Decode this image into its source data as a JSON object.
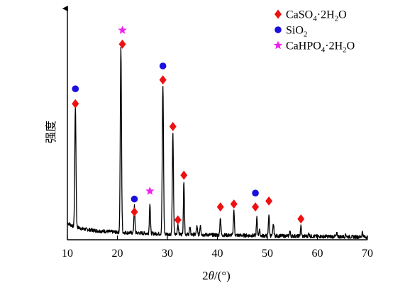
{
  "chart_data": {
    "type": "line",
    "xlabel_parts": [
      "2",
      "θ",
      "/(°)"
    ],
    "ylabel": "强度",
    "xlim": [
      10,
      70
    ],
    "ylim": [
      0,
      100
    ],
    "x_ticks": [
      10,
      20,
      30,
      40,
      50,
      60,
      70
    ],
    "y_ticks": [],
    "grid": false,
    "legend_position": "top-right",
    "legend": [
      {
        "key": "gypsum",
        "marker": "diamond",
        "color": "#ee1111",
        "parts": [
          [
            "CaSO",
            ""
          ],
          [
            "4",
            "sub"
          ],
          [
            "·2H",
            ""
          ],
          [
            "2",
            "sub"
          ],
          [
            "O",
            ""
          ]
        ]
      },
      {
        "key": "silica",
        "marker": "circle",
        "color": "#1a10dd",
        "parts": [
          [
            "SiO",
            ""
          ],
          [
            "2",
            "sub"
          ]
        ]
      },
      {
        "key": "brushite",
        "marker": "star",
        "color": "#ee22ee",
        "parts": [
          [
            "CaHPO",
            ""
          ],
          [
            "4",
            "sub"
          ],
          [
            "·2H",
            ""
          ],
          [
            "2",
            "sub"
          ],
          [
            "O",
            ""
          ]
        ]
      }
    ],
    "series": [
      {
        "baseline": [
          [
            10,
            8.5
          ],
          [
            11,
            7
          ],
          [
            13,
            5.5
          ],
          [
            16,
            4.5
          ],
          [
            20,
            3.8
          ],
          [
            25,
            3.3
          ],
          [
            30,
            2.9
          ],
          [
            40,
            2.4
          ],
          [
            50,
            2.0
          ],
          [
            60,
            1.7
          ],
          [
            70,
            1.4
          ]
        ],
        "peaks": [
          {
            "x": 11.6,
            "height": 60.5,
            "width": 0.12
          },
          {
            "x": 20.7,
            "height": 93.0,
            "width": 0.12
          },
          {
            "x": 23.4,
            "height": 13.5,
            "width": 0.1
          },
          {
            "x": 26.5,
            "height": 15.5,
            "width": 0.1
          },
          {
            "x": 29.1,
            "height": 74.5,
            "width": 0.12
          },
          {
            "x": 31.1,
            "height": 50.0,
            "width": 0.11
          },
          {
            "x": 32.1,
            "height": 5.0,
            "width": 0.1
          },
          {
            "x": 33.3,
            "height": 27.0,
            "width": 0.1
          },
          {
            "x": 34.5,
            "height": 3.5,
            "width": 0.1
          },
          {
            "x": 35.9,
            "height": 4.0,
            "width": 0.1
          },
          {
            "x": 36.6,
            "height": 5.0,
            "width": 0.1
          },
          {
            "x": 40.6,
            "height": 9.0,
            "width": 0.1
          },
          {
            "x": 43.3,
            "height": 12.5,
            "width": 0.1
          },
          {
            "x": 47.9,
            "height": 9.0,
            "width": 0.1
          },
          {
            "x": 48.4,
            "height": 3.0,
            "width": 0.1
          },
          {
            "x": 50.3,
            "height": 11.0,
            "width": 0.1
          },
          {
            "x": 51.2,
            "height": 6.0,
            "width": 0.1
          },
          {
            "x": 54.5,
            "height": 2.5,
            "width": 0.1
          },
          {
            "x": 56.7,
            "height": 5.0,
            "width": 0.1
          },
          {
            "x": 58.3,
            "height": 1.5,
            "width": 0.1
          },
          {
            "x": 63.9,
            "height": 1.5,
            "width": 0.1
          },
          {
            "x": 65.7,
            "height": 1.2,
            "width": 0.1
          },
          {
            "x": 69.0,
            "height": 2.5,
            "width": 0.1
          }
        ],
        "noise": 0.9
      }
    ],
    "phase_markers": [
      {
        "phase": "gypsum",
        "x": 11.6,
        "y": 68.5
      },
      {
        "phase": "silica",
        "x": 11.6,
        "y": 76.0
      },
      {
        "phase": "brushite",
        "x": 21.0,
        "y": 105.5
      },
      {
        "phase": "gypsum",
        "x": 21.0,
        "y": 98.5
      },
      {
        "phase": "silica",
        "x": 23.4,
        "y": 20.5
      },
      {
        "phase": "gypsum",
        "x": 23.4,
        "y": 14.0
      },
      {
        "phase": "brushite",
        "x": 26.5,
        "y": 24.5
      },
      {
        "phase": "gypsum",
        "x": 32.1,
        "y": 10.0
      },
      {
        "phase": "silica",
        "x": 29.1,
        "y": 87.5
      },
      {
        "phase": "gypsum",
        "x": 29.1,
        "y": 80.5
      },
      {
        "phase": "gypsum",
        "x": 31.1,
        "y": 57.0
      },
      {
        "phase": "gypsum",
        "x": 33.3,
        "y": 32.5
      },
      {
        "phase": "gypsum",
        "x": 40.6,
        "y": 16.5
      },
      {
        "phase": "gypsum",
        "x": 43.3,
        "y": 18.0
      },
      {
        "phase": "silica",
        "x": 47.6,
        "y": 23.5
      },
      {
        "phase": "gypsum",
        "x": 47.6,
        "y": 16.5
      },
      {
        "phase": "gypsum",
        "x": 50.3,
        "y": 19.5
      },
      {
        "phase": "gypsum",
        "x": 56.7,
        "y": 10.5
      }
    ]
  }
}
